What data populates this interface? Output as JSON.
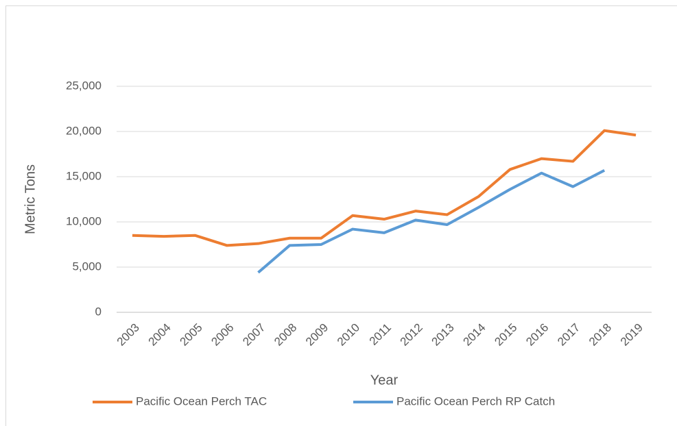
{
  "chart_data": {
    "type": "line",
    "x_label": "Year",
    "y_label": "Metric Tons",
    "categories": [
      "2003",
      "2004",
      "2005",
      "2006",
      "2007",
      "2008",
      "2009",
      "2010",
      "2011",
      "2012",
      "2013",
      "2014",
      "2015",
      "2016",
      "2017",
      "2018",
      "2019"
    ],
    "series": [
      {
        "name": "Pacific Ocean Perch TAC",
        "color": "#ED7D31",
        "values": [
          8500,
          8400,
          8500,
          7400,
          7600,
          8200,
          8200,
          10700,
          10300,
          11200,
          10800,
          12800,
          15800,
          17000,
          16700,
          20100,
          19600
        ]
      },
      {
        "name": "Pacific Ocean Perch RP Catch",
        "color": "#5B9BD5",
        "values": [
          null,
          null,
          null,
          null,
          4400,
          7400,
          7500,
          9200,
          8800,
          10200,
          9700,
          11600,
          13600,
          15400,
          13900,
          15700,
          null
        ]
      }
    ],
    "ylim": [
      0,
      25000
    ],
    "yticks": [
      0,
      {
        "value": 5000,
        "label": "5,000"
      },
      {
        "value": 10000,
        "label": "10,000"
      },
      {
        "value": 15000,
        "label": "15,000"
      },
      {
        "value": 20000,
        "label": "20,000"
      },
      {
        "value": 25000,
        "label": "25,000"
      }
    ],
    "grid": true,
    "legend": "bottom"
  }
}
